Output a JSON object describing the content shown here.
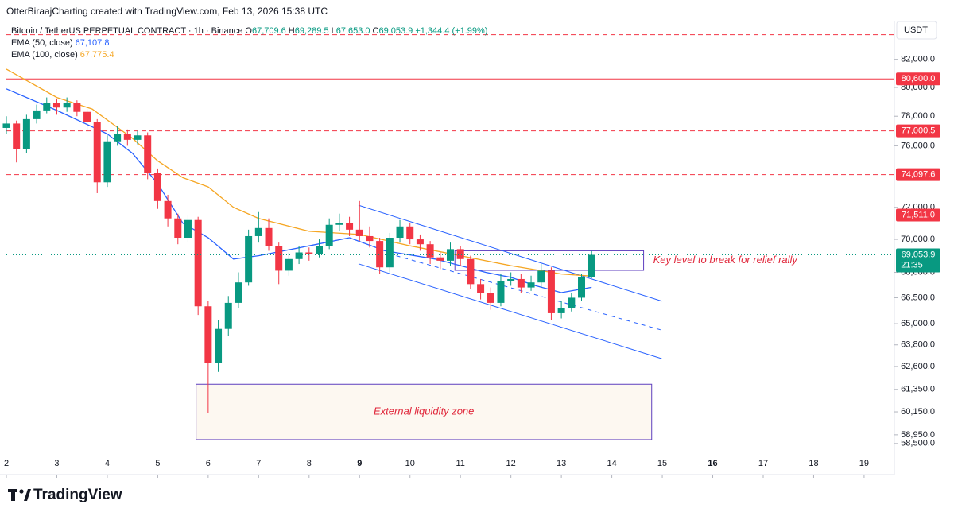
{
  "header": "OtterBiraajCharting created with TradingView.com, Feb 13, 2026 15:38 UTC",
  "chart_data": {
    "type": "candlestick",
    "symbol": "Bitcoin / TetherUS PERPETUAL CONTRACT · 1h · Binance",
    "currency": "USDT",
    "ohlc_legend": [
      {
        "key": "O",
        "text": "67,709.6"
      },
      {
        "key": "H",
        "text": "69,289.5"
      },
      {
        "key": "L",
        "text": "67,653.0"
      },
      {
        "key": "C",
        "text": "69,053.9"
      },
      {
        "key": "",
        "text": "+1,344.4 (+1.99%)"
      }
    ],
    "up_color": "#089981",
    "down_color": "#f23645",
    "x": [
      2.0,
      2.2,
      2.4,
      2.6,
      2.8,
      3.0,
      3.2,
      3.4,
      3.6,
      3.8,
      4.0,
      4.2,
      4.4,
      4.6,
      4.8,
      5.0,
      5.2,
      5.4,
      5.6,
      5.8,
      6.0,
      6.2,
      6.4,
      6.6,
      6.8,
      7.0,
      7.2,
      7.4,
      7.6,
      7.8,
      8.0,
      8.2,
      8.4,
      8.6,
      8.8,
      9.0,
      9.2,
      9.4,
      9.6,
      9.8,
      10.0,
      10.2,
      10.4,
      10.6,
      10.8,
      11.0,
      11.2,
      11.4,
      11.6,
      11.8,
      12.0,
      12.2,
      12.4,
      12.6,
      12.8,
      13.0,
      13.2,
      13.4,
      13.6
    ],
    "open": [
      77200,
      77500,
      75800,
      77800,
      78400,
      78900,
      78600,
      78900,
      78300,
      77600,
      73600,
      76300,
      76800,
      76400,
      76700,
      74200,
      72400,
      71300,
      70100,
      71200,
      66000,
      62800,
      64700,
      66200,
      67400,
      70200,
      70700,
      69600,
      68100,
      68800,
      69200,
      69100,
      69600,
      70900,
      71000,
      70600,
      70200,
      69900,
      68300,
      70100,
      70800,
      70000,
      69700,
      68900,
      68700,
      69400,
      68800,
      67300,
      66800,
      66200,
      67500,
      67600,
      67100,
      67400,
      68100,
      65600,
      65900,
      66500,
      67709.6
    ],
    "close": [
      77500,
      75800,
      77800,
      78400,
      78900,
      78600,
      78900,
      78300,
      77600,
      73600,
      76300,
      76800,
      76400,
      76700,
      74200,
      72400,
      71300,
      70100,
      71200,
      66000,
      62800,
      64700,
      66200,
      67400,
      70200,
      70700,
      69600,
      68100,
      68800,
      69200,
      69100,
      69600,
      70900,
      71000,
      70600,
      70200,
      69900,
      68300,
      70100,
      70800,
      70000,
      69700,
      68900,
      68700,
      69400,
      68800,
      67300,
      66800,
      66200,
      67500,
      67600,
      67100,
      67400,
      68100,
      65600,
      65900,
      66500,
      67709.6,
      69053.9
    ],
    "high": [
      78000,
      77700,
      78100,
      78800,
      79300,
      79200,
      79300,
      79100,
      78500,
      77800,
      76700,
      77300,
      77100,
      77000,
      76900,
      74500,
      72800,
      71600,
      71500,
      71400,
      66300,
      65200,
      66600,
      68000,
      70600,
      71700,
      71300,
      69800,
      69200,
      69600,
      69500,
      70000,
      71300,
      71600,
      71400,
      72400,
      70800,
      70100,
      70400,
      71200,
      71000,
      70300,
      69900,
      69200,
      69800,
      69600,
      69000,
      67600,
      67100,
      67900,
      68000,
      67900,
      67800,
      68500,
      68300,
      66300,
      66800,
      67900,
      69289.5
    ],
    "low": [
      76800,
      74900,
      75500,
      77500,
      78200,
      78100,
      78300,
      78000,
      77000,
      72900,
      73300,
      76000,
      76000,
      76100,
      73800,
      71900,
      70800,
      69700,
      69800,
      65500,
      60100,
      62300,
      64300,
      65900,
      67200,
      69800,
      69300,
      67300,
      67800,
      68500,
      68700,
      68900,
      69400,
      70500,
      70200,
      69900,
      69500,
      67900,
      68000,
      69800,
      69700,
      69300,
      68500,
      68200,
      68400,
      68400,
      67000,
      66400,
      65800,
      66000,
      67200,
      66800,
      66900,
      67100,
      65200,
      65300,
      65700,
      66300,
      67653
    ],
    "series": [
      {
        "name": "EMA (50, close)",
        "value_label": "67,107.8",
        "color": "#2962ff",
        "x": [
          2.0,
          3.0,
          4.0,
          4.5,
          5.0,
          5.5,
          6.0,
          6.5,
          7.0,
          8.0,
          8.8,
          9.5,
          10.5,
          11.5,
          12.0,
          12.5,
          13.0,
          13.6
        ],
        "values": [
          79900,
          78400,
          76800,
          75500,
          73500,
          71000,
          70100,
          68800,
          69000,
          69600,
          70100,
          69300,
          68800,
          68000,
          67700,
          67200,
          66800,
          67107.8
        ]
      },
      {
        "name": "EMA (100, close)",
        "value_label": "67,775.4",
        "color": "#f5a623",
        "x": [
          2.0,
          3.0,
          3.7,
          4.5,
          5.0,
          5.5,
          6.0,
          6.5,
          7.0,
          8.0,
          9.0,
          10.0,
          11.0,
          12.0,
          13.0,
          13.6
        ],
        "values": [
          81300,
          79300,
          78500,
          76500,
          75000,
          73900,
          73300,
          72000,
          71300,
          70500,
          70300,
          69600,
          69000,
          68400,
          67900,
          67775.4
        ]
      }
    ],
    "xlim": [
      2,
      19.6
    ],
    "xticks": [
      2,
      3,
      4,
      5,
      6,
      7,
      8,
      9,
      10,
      11,
      12,
      13,
      14,
      15,
      16,
      17,
      18,
      19
    ],
    "bold_xticks": [
      9,
      16
    ],
    "ylim": [
      57000,
      84600
    ],
    "log_scale": true,
    "yticks": [
      {
        "value": 82000,
        "label": "82,000.0"
      },
      {
        "value": 80000,
        "label": "80,000.0"
      },
      {
        "value": 78000,
        "label": "78,000.0"
      },
      {
        "value": 76000,
        "label": "76,000.0"
      },
      {
        "value": 72000,
        "label": "72,000.0"
      },
      {
        "value": 70000,
        "label": "70,000.0"
      },
      {
        "value": 68000,
        "label": "68,000.0"
      },
      {
        "value": 66500,
        "label": "66,500.0"
      },
      {
        "value": 65000,
        "label": "65,000.0"
      },
      {
        "value": 63800,
        "label": "63,800.0"
      },
      {
        "value": 62600,
        "label": "62,600.0"
      },
      {
        "value": 61350,
        "label": "61,350.0"
      },
      {
        "value": 60150,
        "label": "60,150.0"
      },
      {
        "value": 58950,
        "label": "58,950.0"
      },
      {
        "value": 58500,
        "label": "58,500.0"
      }
    ],
    "levels": [
      {
        "value": 83800,
        "style": "dashed"
      },
      {
        "value": 80600,
        "label": "80,600.0",
        "style": "solid"
      },
      {
        "value": 77000.5,
        "label": "77,000.5",
        "style": "dashed"
      },
      {
        "value": 74097.6,
        "label": "74,097.6",
        "style": "dashed"
      },
      {
        "value": 71511,
        "label": "71,511.0",
        "style": "dashed"
      }
    ],
    "level_color": "#f23645",
    "current_price": {
      "value": 69053.9,
      "label": "69,053.9",
      "countdown": "21:35"
    },
    "trend_lines": [
      {
        "x": [
          8.98,
          14.99
        ],
        "y": [
          72130,
          66300
        ],
        "style": "solid"
      },
      {
        "x": [
          8.98,
          14.99
        ],
        "y": [
          68510,
          63030
        ],
        "style": "solid"
      },
      {
        "x": [
          9.73,
          14.99
        ],
        "y": [
          69000,
          64630
        ],
        "style": "dashed"
      }
    ],
    "trend_color": "#2962ff",
    "zones": [
      {
        "x": [
          10.89,
          14.63
        ],
        "y": [
          68120,
          69300
        ],
        "label": "Key level to break for relief rally",
        "label_position": "right",
        "fill": "none"
      },
      {
        "x": [
          5.76,
          14.79
        ],
        "y": [
          58700,
          61630
        ],
        "label": "External liquidity zone",
        "label_position": "center",
        "fill": "#fdf8f1"
      }
    ],
    "zone_color": "#5e3fbf",
    "annotation_color": "#e0263a",
    "watermark": "TradingView"
  }
}
